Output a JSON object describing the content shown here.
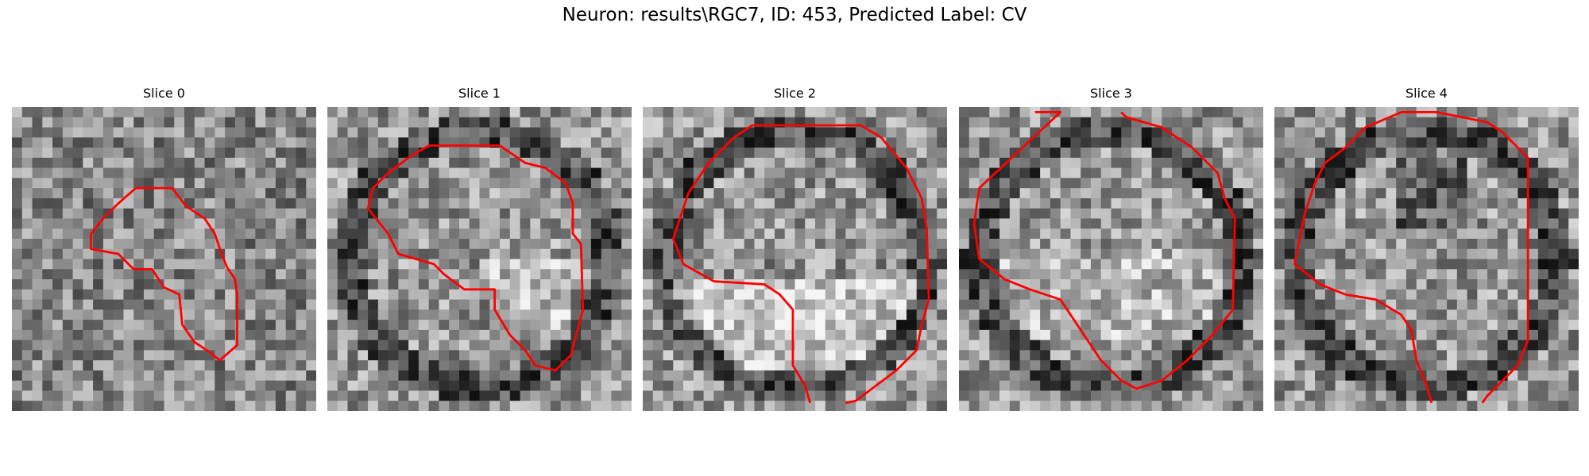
{
  "figure": {
    "title": "Neuron: results\\RGC7, ID: 453, Predicted Label: CV"
  },
  "contour_color": "#ff0000",
  "colormap": "gray",
  "slices": [
    {
      "title": "Slice 0"
    },
    {
      "title": "Slice 1"
    },
    {
      "title": "Slice 2"
    },
    {
      "title": "Slice 3"
    },
    {
      "title": "Slice 4"
    }
  ]
}
